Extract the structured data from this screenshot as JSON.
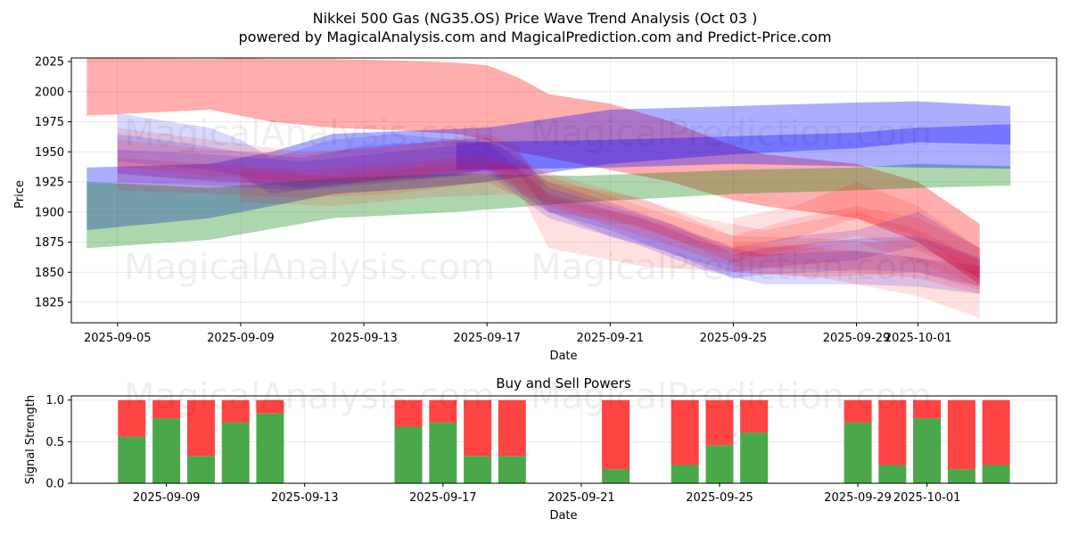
{
  "header": {
    "title": "Nikkei 500 Gas (NG35.OS) Price Wave Trend Analysis (Oct 03 )",
    "subtitle": "powered by MagicalAnalysis.com and MagicalPrediction.com and Predict-Price.com"
  },
  "watermarks": [
    "MagicalAnalysis.com",
    "MagicalPrediction.com"
  ],
  "colors": {
    "red": "#ff0000",
    "blue": "#0000ff",
    "green": "#008000",
    "buy": "#4aa84a",
    "sell": "#ff4444"
  },
  "chart_data": [
    {
      "type": "area",
      "xlabel": "Date",
      "ylabel": "Price",
      "xlim": [
        "2025-09-03T12:00",
        "2025-10-05T12:00"
      ],
      "ylim": [
        1808,
        2028
      ],
      "x_ticks": [
        "2025-09-05",
        "2025-09-09",
        "2025-09-13",
        "2025-09-17",
        "2025-09-21",
        "2025-09-25",
        "2025-09-29",
        "2025-10-01"
      ],
      "y_ticks": [
        1825,
        1850,
        1875,
        1900,
        1925,
        1950,
        1975,
        2000,
        2025
      ],
      "grid": true,
      "bands": [
        {
          "color": "red",
          "opacity": 0.32,
          "x": [
            "2025-09-04",
            "2025-09-08",
            "2025-09-09",
            "2025-09-10",
            "2025-09-12",
            "2025-09-14",
            "2025-09-16",
            "2025-09-17",
            "2025-09-18",
            "2025-09-19",
            "2025-09-21",
            "2025-09-23",
            "2025-09-24",
            "2025-09-25",
            "2025-09-26",
            "2025-09-29",
            "2025-10-01",
            "2025-10-03"
          ],
          "upper": [
            2028,
            2027,
            2028,
            2027,
            2027,
            2026,
            2024,
            2022,
            2012,
            1998,
            1990,
            1975,
            1965,
            1955,
            1948,
            1940,
            1925,
            1890
          ],
          "lower": [
            1980,
            1985,
            1980,
            1975,
            1970,
            1968,
            1965,
            1960,
            1950,
            1945,
            1935,
            1925,
            1917,
            1910,
            1905,
            1895,
            1875,
            1840
          ]
        },
        {
          "color": "blue",
          "opacity": 0.32,
          "x": [
            "2025-09-04",
            "2025-09-08",
            "2025-09-10",
            "2025-09-12",
            "2025-09-15",
            "2025-09-17",
            "2025-09-21",
            "2025-09-25",
            "2025-09-29",
            "2025-10-01",
            "2025-10-04"
          ],
          "upper": [
            1937,
            1940,
            1950,
            1965,
            1968,
            1970,
            1985,
            1988,
            1991,
            1992,
            1988
          ],
          "lower": [
            1885,
            1895,
            1905,
            1915,
            1920,
            1925,
            1940,
            1948,
            1953,
            1958,
            1956
          ]
        },
        {
          "color": "green",
          "opacity": 0.32,
          "x": [
            "2025-09-04",
            "2025-09-08",
            "2025-09-12",
            "2025-09-16",
            "2025-09-20",
            "2025-09-25",
            "2025-09-29",
            "2025-10-01",
            "2025-10-04"
          ],
          "upper": [
            1925,
            1920,
            1928,
            1932,
            1930,
            1935,
            1937,
            1940,
            1938
          ],
          "lower": [
            1870,
            1877,
            1895,
            1900,
            1908,
            1915,
            1918,
            1920,
            1922
          ]
        },
        {
          "color": "blue",
          "opacity": 0.32,
          "x": [
            "2025-09-16",
            "2025-09-21",
            "2025-09-25",
            "2025-09-29",
            "2025-10-01",
            "2025-10-04"
          ],
          "upper": [
            1958,
            1960,
            1963,
            1966,
            1970,
            1973
          ],
          "lower": [
            1935,
            1937,
            1940,
            1938,
            1937,
            1936
          ]
        },
        {
          "color": "blue",
          "opacity": 0.15,
          "x": [
            "2025-09-05",
            "2025-09-08",
            "2025-09-09",
            "2025-09-10",
            "2025-09-12",
            "2025-09-14",
            "2025-09-16",
            "2025-09-17",
            "2025-09-18",
            "2025-09-19",
            "2025-09-21",
            "2025-09-23",
            "2025-09-24",
            "2025-09-25",
            "2025-09-26",
            "2025-09-29",
            "2025-10-01",
            "2025-10-03"
          ],
          "upper": [
            1982,
            1970,
            1960,
            1945,
            1960,
            1965,
            1960,
            1958,
            1950,
            1920,
            1905,
            1890,
            1878,
            1865,
            1870,
            1878,
            1880,
            1862
          ],
          "lower": [
            1942,
            1935,
            1930,
            1915,
            1922,
            1928,
            1930,
            1935,
            1932,
            1900,
            1880,
            1866,
            1855,
            1845,
            1848,
            1852,
            1850,
            1838
          ]
        },
        {
          "color": "blue",
          "opacity": 0.15,
          "x": [
            "2025-09-05",
            "2025-09-07",
            "2025-09-09",
            "2025-09-11",
            "2025-09-13",
            "2025-09-15",
            "2025-09-17",
            "2025-09-19",
            "2025-09-21",
            "2025-09-23",
            "2025-09-25",
            "2025-09-27",
            "2025-09-29",
            "2025-10-01",
            "2025-10-03"
          ],
          "upper": [
            1965,
            1958,
            1950,
            1945,
            1955,
            1958,
            1962,
            1925,
            1908,
            1890,
            1870,
            1880,
            1885,
            1900,
            1870
          ],
          "lower": [
            1932,
            1928,
            1925,
            1920,
            1925,
            1928,
            1935,
            1900,
            1885,
            1865,
            1850,
            1856,
            1860,
            1872,
            1845
          ]
        },
        {
          "color": "blue",
          "opacity": 0.15,
          "x": [
            "2025-09-05",
            "2025-09-08",
            "2025-09-11",
            "2025-09-14",
            "2025-09-17",
            "2025-09-19",
            "2025-09-22",
            "2025-09-24",
            "2025-09-26",
            "2025-09-29",
            "2025-10-01",
            "2025-10-03"
          ],
          "upper": [
            1952,
            1948,
            1942,
            1950,
            1958,
            1915,
            1895,
            1875,
            1865,
            1868,
            1862,
            1855
          ],
          "lower": [
            1925,
            1922,
            1918,
            1925,
            1932,
            1895,
            1872,
            1852,
            1840,
            1840,
            1838,
            1832
          ]
        },
        {
          "color": "red",
          "opacity": 0.12,
          "x": [
            "2025-09-05",
            "2025-09-08",
            "2025-09-11",
            "2025-09-14",
            "2025-09-17",
            "2025-09-18",
            "2025-09-19",
            "2025-09-22",
            "2025-09-25",
            "2025-09-28",
            "2025-10-01",
            "2025-10-03"
          ],
          "upper": [
            1970,
            1960,
            1950,
            1955,
            1965,
            1955,
            1912,
            1895,
            1872,
            1870,
            1862,
            1850
          ],
          "lower": [
            1938,
            1930,
            1925,
            1928,
            1935,
            1920,
            1870,
            1855,
            1850,
            1845,
            1830,
            1812
          ]
        },
        {
          "color": "red",
          "opacity": 0.12,
          "x": [
            "2025-09-05",
            "2025-09-08",
            "2025-09-11",
            "2025-09-14",
            "2025-09-17",
            "2025-09-19",
            "2025-09-22",
            "2025-09-25",
            "2025-09-27",
            "2025-09-29",
            "2025-10-01",
            "2025-10-03"
          ],
          "upper": [
            1945,
            1940,
            1935,
            1940,
            1948,
            1925,
            1912,
            1880,
            1895,
            1905,
            1895,
            1870
          ],
          "lower": [
            1918,
            1915,
            1912,
            1915,
            1925,
            1900,
            1888,
            1858,
            1870,
            1880,
            1868,
            1845
          ]
        },
        {
          "color": "red",
          "opacity": 0.12,
          "x": [
            "2025-09-09",
            "2025-09-12",
            "2025-09-15",
            "2025-09-18",
            "2025-09-21",
            "2025-09-24",
            "2025-09-26",
            "2025-09-29",
            "2025-10-01",
            "2025-10-03"
          ],
          "upper": [
            1935,
            1930,
            1938,
            1940,
            1918,
            1895,
            1885,
            1900,
            1885,
            1860
          ],
          "lower": [
            1908,
            1905,
            1912,
            1915,
            1895,
            1870,
            1862,
            1875,
            1858,
            1838
          ]
        },
        {
          "color": "red",
          "opacity": 0.12,
          "x": [
            "2025-09-25",
            "2025-09-27",
            "2025-09-29",
            "2025-10-01",
            "2025-10-03"
          ],
          "upper": [
            1895,
            1905,
            1925,
            1905,
            1870
          ],
          "lower": [
            1870,
            1878,
            1895,
            1880,
            1845
          ]
        },
        {
          "color": "red",
          "opacity": 0.12,
          "x": [
            "2025-09-25",
            "2025-09-28",
            "2025-10-01",
            "2025-10-03"
          ],
          "upper": [
            1875,
            1872,
            1878,
            1860
          ],
          "lower": [
            1850,
            1846,
            1850,
            1835
          ]
        },
        {
          "color": "red",
          "opacity": 0.12,
          "x": [
            "2025-09-05",
            "2025-09-08",
            "2025-09-11",
            "2025-09-14",
            "2025-09-17",
            "2025-09-19",
            "2025-09-22",
            "2025-09-25",
            "2025-09-28",
            "2025-10-01",
            "2025-10-03"
          ],
          "upper": [
            1960,
            1952,
            1948,
            1955,
            1962,
            1930,
            1905,
            1880,
            1878,
            1872,
            1855
          ],
          "lower": [
            1932,
            1925,
            1922,
            1928,
            1938,
            1905,
            1880,
            1855,
            1852,
            1845,
            1832
          ]
        }
      ]
    },
    {
      "type": "bar",
      "title": "Buy and Sell Powers",
      "xlabel": "Date",
      "ylabel": "Signal Strength",
      "xlim": [
        "2025-09-06T06:00",
        "2025-10-04T18:00"
      ],
      "ylim": [
        0,
        1.05
      ],
      "x_ticks": [
        "2025-09-09",
        "2025-09-13",
        "2025-09-17",
        "2025-09-21",
        "2025-09-25",
        "2025-09-29",
        "2025-10-01"
      ],
      "y_ticks": [
        "0.0",
        "0.5",
        "1.0"
      ],
      "grid": true,
      "bars": [
        {
          "date": "2025-09-08",
          "buy": 0.56
        },
        {
          "date": "2025-09-09",
          "buy": 0.78
        },
        {
          "date": "2025-09-10",
          "buy": 0.33
        },
        {
          "date": "2025-09-11",
          "buy": 0.73
        },
        {
          "date": "2025-09-12",
          "buy": 0.84
        },
        {
          "date": "2025-09-16",
          "buy": 0.68
        },
        {
          "date": "2025-09-17",
          "buy": 0.73
        },
        {
          "date": "2025-09-18",
          "buy": 0.33
        },
        {
          "date": "2025-09-19",
          "buy": 0.33
        },
        {
          "date": "2025-09-22",
          "buy": 0.17
        },
        {
          "date": "2025-09-24",
          "buy": 0.22
        },
        {
          "date": "2025-09-25",
          "buy": 0.46
        },
        {
          "date": "2025-09-26",
          "buy": 0.61
        },
        {
          "date": "2025-09-29",
          "buy": 0.73
        },
        {
          "date": "2025-09-30",
          "buy": 0.22
        },
        {
          "date": "2025-10-01",
          "buy": 0.78
        },
        {
          "date": "2025-10-02",
          "buy": 0.17
        },
        {
          "date": "2025-10-03",
          "buy": 0.22
        }
      ]
    }
  ]
}
